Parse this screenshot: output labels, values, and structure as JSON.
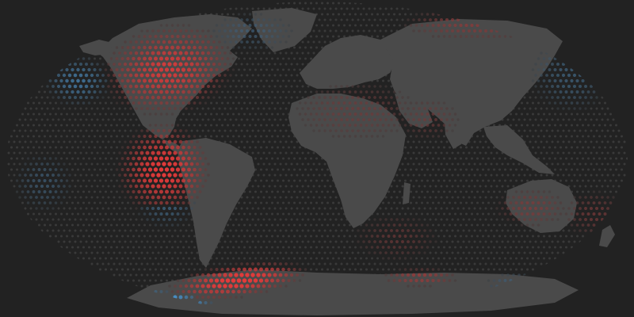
{
  "map": {
    "projection": "robinson",
    "style": "dot-grid",
    "colors": {
      "background": "#222222",
      "ocean_dot": "#3a3a3a",
      "land": "#4a4a4a",
      "warm": "#e53a3a",
      "cool": "#4a9ee0"
    },
    "anomaly_regions": [
      {
        "name": "north-america",
        "sign": "warm",
        "strength": 0.85
      },
      {
        "name": "northeast-pacific",
        "sign": "cool",
        "strength": 0.6
      },
      {
        "name": "greenland",
        "sign": "cool",
        "strength": 0.35
      },
      {
        "name": "arctic-north-asia",
        "sign": "warm",
        "strength": 0.45
      },
      {
        "name": "north-africa-middle-east",
        "sign": "warm",
        "strength": 0.3
      },
      {
        "name": "arabian-sea",
        "sign": "warm",
        "strength": 0.3
      },
      {
        "name": "north-pacific-east-asia",
        "sign": "cool",
        "strength": 0.4
      },
      {
        "name": "eastern-tropical-pacific",
        "sign": "warm",
        "strength": 0.95
      },
      {
        "name": "west-of-chile",
        "sign": "cool",
        "strength": 0.45
      },
      {
        "name": "australia",
        "sign": "warm",
        "strength": 0.4
      },
      {
        "name": "south-pacific-west",
        "sign": "cool",
        "strength": 0.35
      },
      {
        "name": "southwest-pacific-ocean",
        "sign": "warm",
        "strength": 0.35
      },
      {
        "name": "weddell-sea",
        "sign": "warm",
        "strength": 1.0
      },
      {
        "name": "west-antarctica-coast",
        "sign": "cool",
        "strength": 1.0
      },
      {
        "name": "east-antarctica-coast",
        "sign": "warm",
        "strength": 0.55
      },
      {
        "name": "ross-sea",
        "sign": "cool",
        "strength": 0.4
      },
      {
        "name": "southern-indian-ocean",
        "sign": "warm",
        "strength": 0.3
      }
    ]
  }
}
